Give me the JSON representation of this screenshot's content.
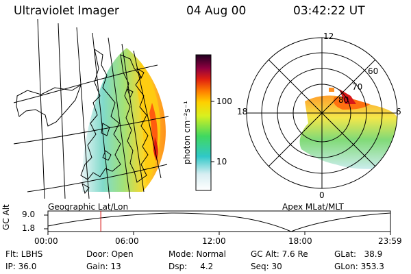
{
  "header": {
    "title": "Ultraviolet Imager",
    "date": "04 Aug 00",
    "time": "03:42:22 UT"
  },
  "colorbar": {
    "label": "photon cm⁻²s⁻¹",
    "scale": "log",
    "ticks": [
      "100",
      "10"
    ]
  },
  "left_map": {
    "caption": "Geographic Lat/Lon"
  },
  "right_map": {
    "caption": "Apex MLat/MLT",
    "mlt_labels": [
      "12",
      "18",
      "6",
      "0"
    ],
    "lat_labels": [
      "60",
      "70",
      "80"
    ]
  },
  "orbit_plot": {
    "ylabel": "GC Alt",
    "yticks": [
      "9.0",
      "1.8"
    ],
    "xticks": [
      "00:00",
      "06:00",
      "12:00",
      "18:00",
      "23:59"
    ],
    "marker_time": "03:42"
  },
  "info": {
    "flt": "Flt: LBHS",
    "ip": "IP: 36.0",
    "door": "Door: Open",
    "gain": "Gain: 13",
    "mode": "Mode: Normal",
    "dsp": "Dsp:     4.2",
    "gcalt": "GC Alt: 7.6 Re",
    "seq": "Seq: 30",
    "glat": "GLat:   38.9",
    "glon": "GLon: 353.3"
  },
  "colors": {
    "marker": "#d40000",
    "ink": "#000000"
  }
}
